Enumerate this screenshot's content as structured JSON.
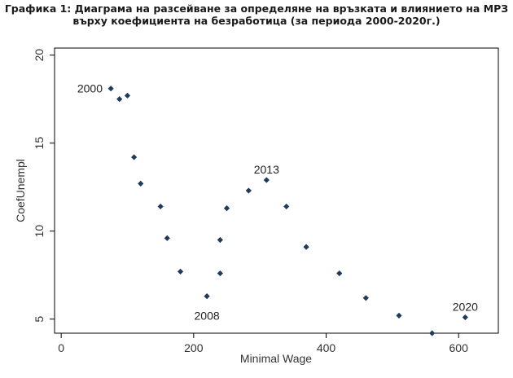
{
  "title": {
    "line1": "Графика 1: Диаграма на разсейване за определяне на връзката и влиянието на МРЗ",
    "line2": "върху коефициента на безработица (за периода 2000-2020г.)"
  },
  "chart_data": {
    "type": "scatter",
    "title": "Графика 1: Диаграма на разсейване за определяне на връзката и влиянието на МРЗ върху коефициента на безработица (за периода 2000-2020г.)",
    "xlabel": "Minimal Wage",
    "ylabel": "CoefUnempl",
    "xlim": [
      -10,
      660
    ],
    "ylim": [
      4.2,
      20.4
    ],
    "x_ticks": [
      "0",
      "200",
      "400",
      "600"
    ],
    "y_ticks": [
      "5",
      "10",
      "15",
      "20"
    ],
    "grid": false,
    "legend": "none",
    "marker_color": "#1f3b5c",
    "points": [
      {
        "x": 75,
        "y": 18.1
      },
      {
        "x": 88,
        "y": 17.5
      },
      {
        "x": 100,
        "y": 17.7
      },
      {
        "x": 110,
        "y": 14.2
      },
      {
        "x": 120,
        "y": 12.7
      },
      {
        "x": 150,
        "y": 11.4
      },
      {
        "x": 160,
        "y": 9.6
      },
      {
        "x": 180,
        "y": 7.7
      },
      {
        "x": 220,
        "y": 6.3
      },
      {
        "x": 240,
        "y": 7.6
      },
      {
        "x": 240,
        "y": 9.5
      },
      {
        "x": 250,
        "y": 11.3
      },
      {
        "x": 283,
        "y": 12.3
      },
      {
        "x": 310,
        "y": 12.9
      },
      {
        "x": 340,
        "y": 11.4
      },
      {
        "x": 370,
        "y": 9.1
      },
      {
        "x": 420,
        "y": 7.6
      },
      {
        "x": 460,
        "y": 6.2
      },
      {
        "x": 510,
        "y": 5.2
      },
      {
        "x": 560,
        "y": 4.2
      },
      {
        "x": 610,
        "y": 5.1
      }
    ],
    "annotations": [
      {
        "text": "2000",
        "x": 65,
        "y": 18.1
      },
      {
        "text": "2013",
        "x": 310,
        "y": 13.5
      },
      {
        "text": "2008",
        "x": 220,
        "y": 5.2
      },
      {
        "text": "2020",
        "x": 610,
        "y": 5.7
      }
    ]
  }
}
